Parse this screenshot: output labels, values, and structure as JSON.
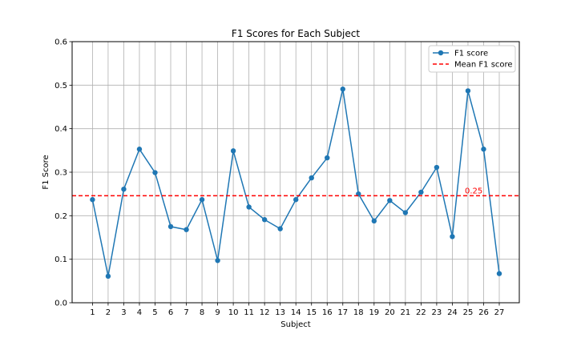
{
  "chart_data": {
    "type": "line",
    "title": "F1 Scores for Each Subject",
    "xlabel": "Subject",
    "ylabel": "F1 Score",
    "ylim": [
      0,
      0.6
    ],
    "yticks": [
      "0.0",
      "0.1",
      "0.2",
      "0.3",
      "0.4",
      "0.5",
      "0.6"
    ],
    "grid": true,
    "legend_position": "top-right",
    "x": [
      1,
      2,
      3,
      4,
      5,
      6,
      7,
      8,
      9,
      10,
      11,
      12,
      13,
      14,
      15,
      16,
      17,
      18,
      19,
      20,
      21,
      22,
      23,
      24,
      25,
      26,
      27
    ],
    "series": [
      {
        "name": "F1 score",
        "color": "#1f77b4",
        "values": [
          0.237,
          0.061,
          0.261,
          0.353,
          0.299,
          0.175,
          0.168,
          0.237,
          0.097,
          0.349,
          0.22,
          0.191,
          0.17,
          0.237,
          0.287,
          0.333,
          0.491,
          0.25,
          0.188,
          0.235,
          0.207,
          0.254,
          0.311,
          0.152,
          0.487,
          0.353,
          0.067
        ]
      }
    ],
    "reference_line": {
      "name": "Mean F1 score",
      "value": 0.246,
      "label": "0.25",
      "color": "#ff0000",
      "style": "dashed"
    }
  }
}
